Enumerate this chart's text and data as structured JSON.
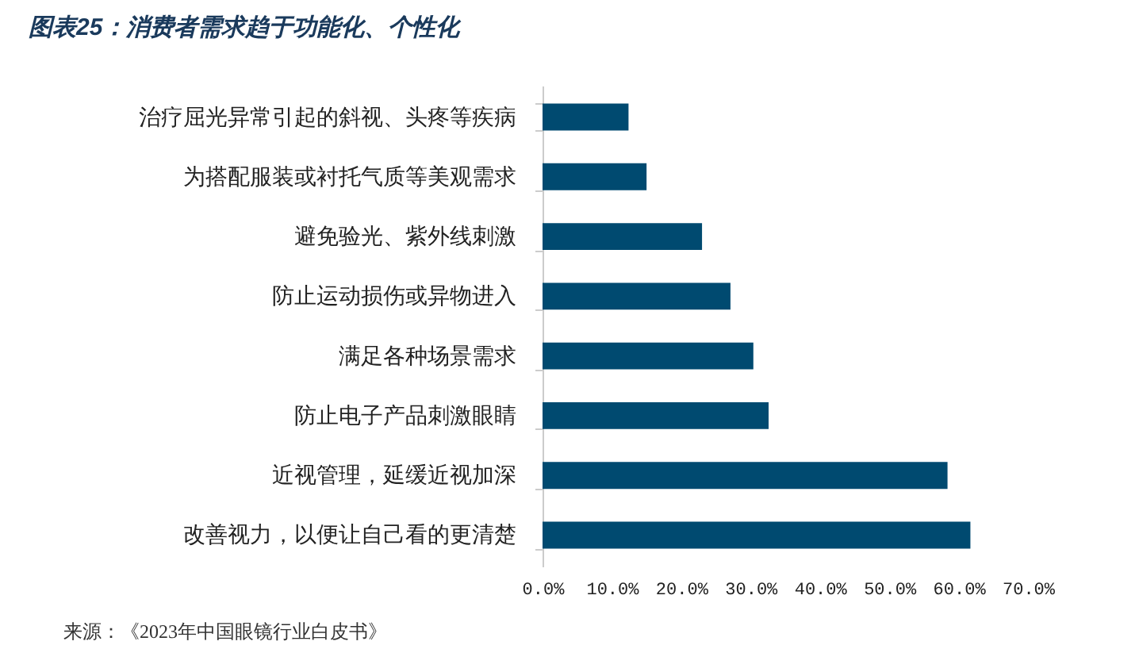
{
  "chart_data": {
    "type": "bar",
    "orientation": "horizontal",
    "title": "图表25：消费者需求趋于功能化、个性化",
    "categories": [
      "治疗屈光异常引起的斜视、头疼等疾病",
      "为搭配服装或衬托气质等美观需求",
      "避免验光、紫外线刺激",
      "防止运动损伤或异物进入",
      "满足各种场景需求",
      "防止电子产品刺激眼睛",
      "近视管理，延缓近视加深",
      "改善视力，以便让自己看的更清楚"
    ],
    "values": [
      12.4,
      15.0,
      23.0,
      27.1,
      30.4,
      32.6,
      58.4,
      61.7
    ],
    "color": "#004a70",
    "xlim": [
      0,
      70
    ],
    "xticks": [
      {
        "value": 0,
        "label": "0.0%"
      },
      {
        "value": 10,
        "label": "10.0%"
      },
      {
        "value": 20,
        "label": "20.0%"
      },
      {
        "value": 30,
        "label": "30.0%"
      },
      {
        "value": 40,
        "label": "40.0%"
      },
      {
        "value": 50,
        "label": "50.0%"
      },
      {
        "value": 60,
        "label": "60.0%"
      },
      {
        "value": 70,
        "label": "70.0%"
      }
    ],
    "annotations": [
      "来源：《2023年中国眼镜行业白皮书》"
    ]
  }
}
